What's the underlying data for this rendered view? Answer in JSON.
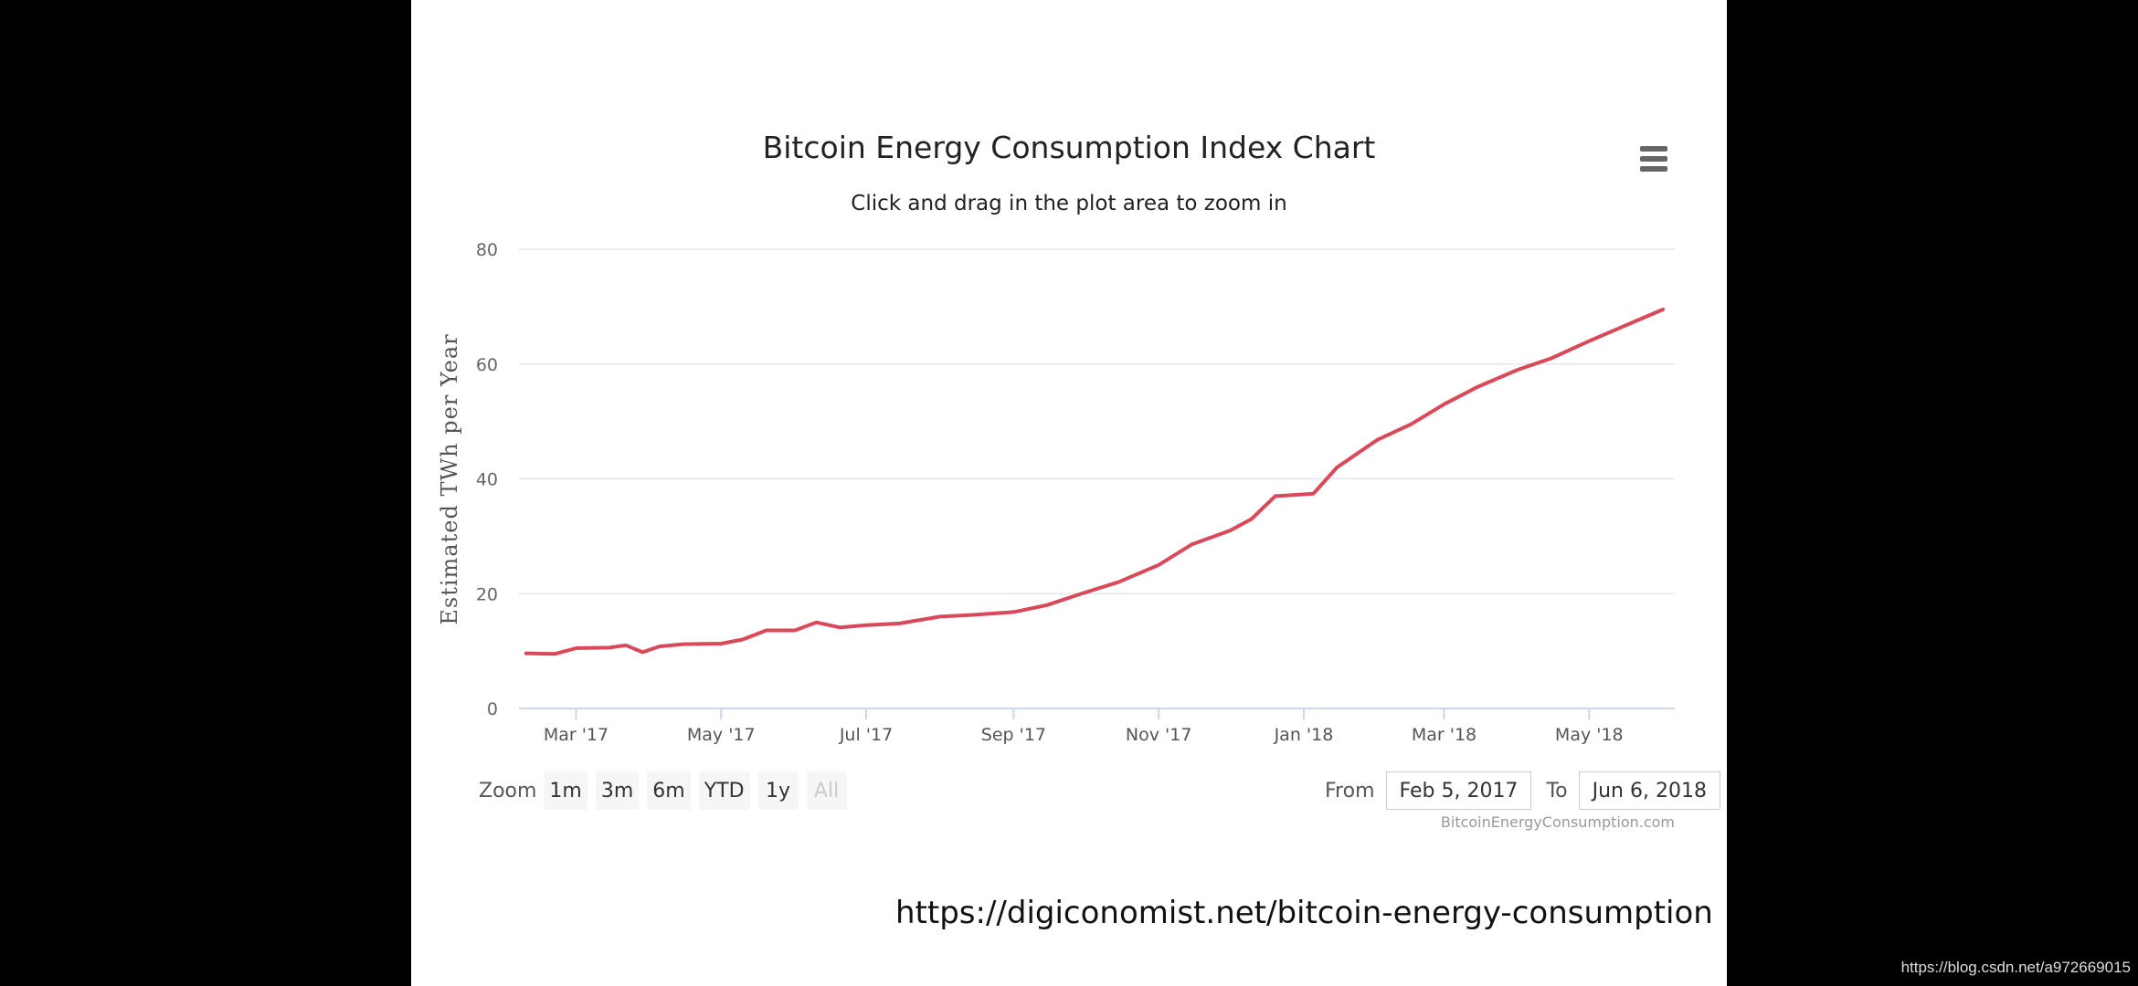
{
  "slide": {
    "source_url": "https://digiconomist.net/bitcoin-energy-consumption"
  },
  "watermark": "https://blog.csdn.net/a972669015",
  "chart": {
    "subtitle": "Click and drag in the plot area to zoom in",
    "menu_icon": "hamburger-menu-icon",
    "zoom_label": "Zoom",
    "zoom_buttons": [
      "1m",
      "3m",
      "6m",
      "YTD",
      "1y",
      "All"
    ],
    "range_from_label": "From",
    "range_from_value": "Feb 5, 2017",
    "range_to_label": "To",
    "range_to_value": "Jun 6, 2018",
    "credits": "BitcoinEnergyConsumption.com",
    "line_color": "#d9495a"
  },
  "chart_data": {
    "type": "line",
    "title": "Bitcoin Energy Consumption Index Chart",
    "ylabel": "Estimated TWh per Year",
    "xlabel": "",
    "ylim": [
      0,
      80
    ],
    "y_ticks": [
      0,
      20,
      40,
      60,
      80
    ],
    "x_ticks": [
      "Mar '17",
      "May '17",
      "Jul '17",
      "Sep '17",
      "Nov '17",
      "Jan '18",
      "Mar '18",
      "May '18"
    ],
    "x_tick_dates": [
      "2017-03-01",
      "2017-05-01",
      "2017-07-01",
      "2017-09-01",
      "2017-11-01",
      "2018-01-01",
      "2018-03-01",
      "2018-05-01"
    ],
    "xlim": [
      "2017-02-05",
      "2018-06-06"
    ],
    "grid": true,
    "series": [
      {
        "x": [
          "2017-02-08",
          "2017-02-20",
          "2017-03-01",
          "2017-03-15",
          "2017-03-22",
          "2017-03-29",
          "2017-04-05",
          "2017-04-15",
          "2017-05-01",
          "2017-05-10",
          "2017-05-20",
          "2017-06-01",
          "2017-06-10",
          "2017-06-20",
          "2017-07-01",
          "2017-07-15",
          "2017-08-01",
          "2017-08-15",
          "2017-09-01",
          "2017-09-15",
          "2017-10-01",
          "2017-10-15",
          "2017-11-01",
          "2017-11-15",
          "2017-12-01",
          "2017-12-10",
          "2017-12-20",
          "2017-12-28",
          "2018-01-05",
          "2018-01-15",
          "2018-02-01",
          "2018-02-15",
          "2018-03-01",
          "2018-03-15",
          "2018-04-01",
          "2018-04-15",
          "2018-05-01",
          "2018-05-15",
          "2018-06-01"
        ],
        "values": [
          9.6,
          9.5,
          10.5,
          10.6,
          11,
          9.8,
          10.8,
          11.2,
          11.3,
          12,
          13.6,
          13.6,
          15,
          14.1,
          14.5,
          14.8,
          16,
          16.3,
          16.8,
          18,
          20.2,
          22,
          25,
          28.6,
          31,
          33,
          37,
          37.2,
          37.4,
          42,
          46.8,
          49.5,
          53,
          56,
          59,
          61,
          64,
          66.5,
          69.5
        ]
      }
    ]
  }
}
